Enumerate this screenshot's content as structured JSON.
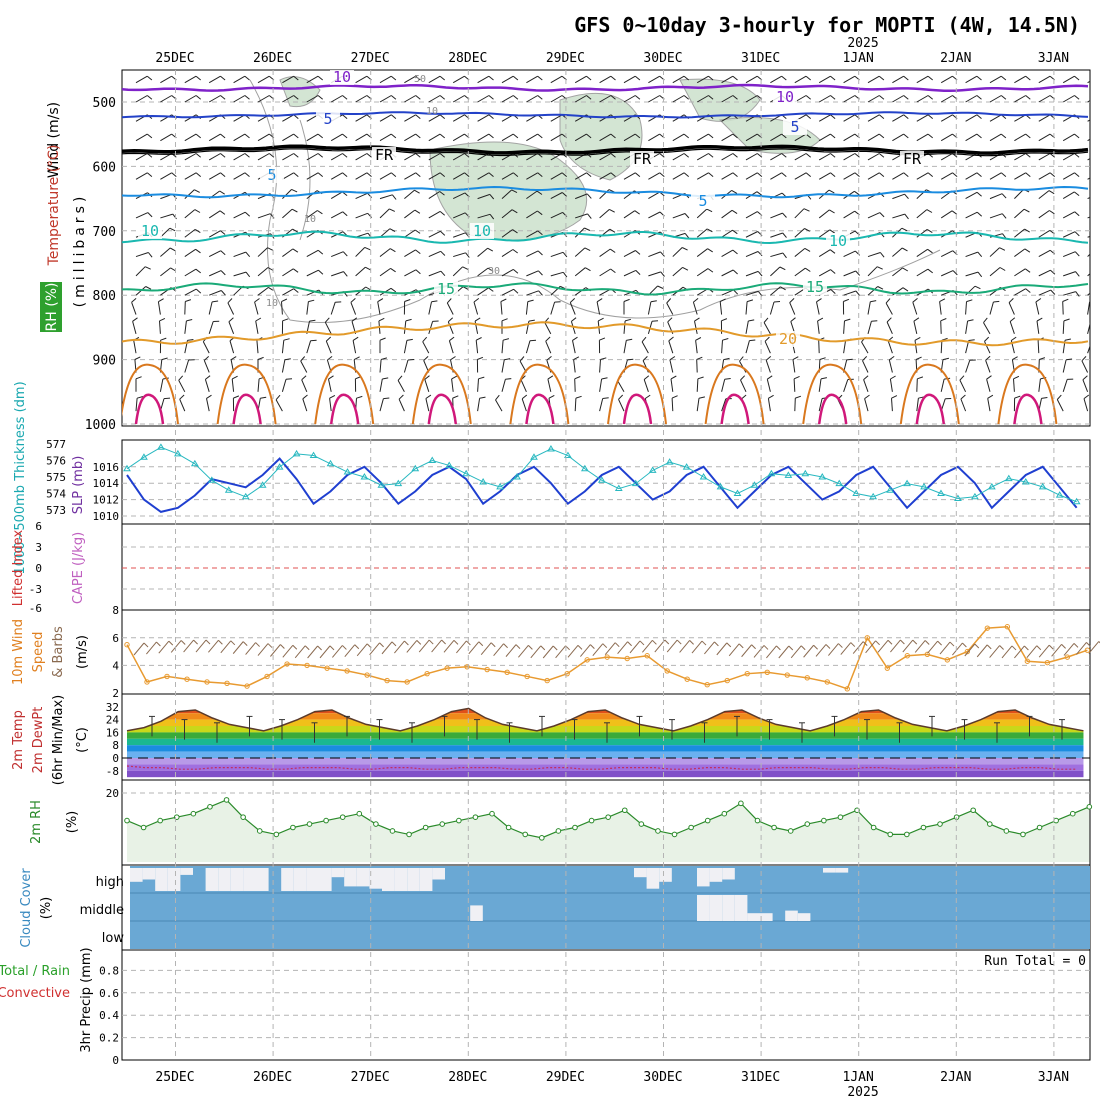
{
  "title": "GFS 0~10day 3-hourly for MOPTI (4W, 14.5N)",
  "year_label": "2025",
  "run_total": "Run Total = 0",
  "date_labels": [
    "25DEC",
    "26DEC",
    "27DEC",
    "28DEC",
    "29DEC",
    "30DEC",
    "31DEC",
    "1JAN",
    "2JAN",
    "3JAN"
  ],
  "colors": {
    "grid": "#b4b4b4",
    "isotherm_purple": "#7f22c9",
    "isotherm_blue": "#2342c8",
    "isotherm_sky": "#1a8ce0",
    "isotherm_teal": "#1ab8b0",
    "isotherm_green": "#1aaa78",
    "isotherm_orange": "#e29a2a",
    "isotherm_darkorange": "#d9781e",
    "isotherm_magenta": "#d0187a",
    "freezing": "#000000",
    "rh_fill": "#cfe3cf",
    "slp": "#1f3fd0",
    "thickness": "#28b8c0",
    "wind_speed": "#e89a30",
    "barb": "#8a6a50",
    "rh2m": "#2a8a2a",
    "rh2m_fill": "#e8f2e6",
    "cloud_bg": "#6aa8d4",
    "cloud_cover": "#f0f0f4"
  },
  "panels": {
    "upper": {
      "ylabel_wind": "Wind (m/s)",
      "ylabel_temp": "Temperature (°C)",
      "ylabel_rh": "RH (%)",
      "ylabel_units": "(millibars)",
      "levels": [
        500,
        600,
        700,
        800,
        900,
        1000
      ],
      "isotherm_labels": [
        "10",
        "5",
        "FR",
        "5",
        "10",
        "15",
        "20"
      ],
      "rh_labels": [
        "50",
        "10",
        "30",
        "10",
        "10"
      ]
    },
    "pressure": {
      "ylabel_thick": "1000~500mb Thickness (dm)",
      "ylabel_slp": "SLP (mb)",
      "thick_ticks": [
        577,
        576,
        575,
        574,
        573
      ],
      "slp_ticks": [
        1016,
        1014,
        1012,
        1010
      ]
    },
    "stability": {
      "ylabel_li": "Lifted Index",
      "ylabel_cape": "CAPE (J/kg)",
      "ticks": [
        "6",
        "3",
        "0",
        "-3",
        "-6"
      ]
    },
    "wind10": {
      "ylabel_a": "10m Wind",
      "ylabel_b": "Speed",
      "ylabel_c": "& Barbs",
      "ylabel_units": "(m/s)",
      "ticks": [
        8,
        6,
        4,
        2
      ]
    },
    "temp2m": {
      "ylabel_a": "2m Temp",
      "ylabel_b": "2m DewPt",
      "ylabel_c": "(6hr Min/Max)",
      "ylabel_units": "(°C)",
      "ticks": [
        32,
        24,
        16,
        8,
        0,
        -8
      ]
    },
    "rh2m": {
      "ylabel": "2m RH",
      "ylabel_units": "(%)",
      "ticks": [
        20
      ]
    },
    "cloud": {
      "ylabel": "Cloud Cover",
      "ylabel_units": "(%)",
      "rows": [
        "high",
        "middle",
        "low"
      ]
    },
    "precip": {
      "ylabel_a": "Total / Rain",
      "ylabel_b": "Convective",
      "ylabel_units": "3hr Precip (mm)",
      "ticks": [
        "0.8",
        "0.6",
        "0.4",
        "0.2",
        "0"
      ]
    }
  },
  "chart_data": {
    "type": "line",
    "x_unit": "hours since 25DEC 00Z (3-hourly)",
    "time_step_hours": 3,
    "slp": [
      1015,
      1012,
      1010.5,
      1011,
      1012.5,
      1014.5,
      1014,
      1013.5,
      1015,
      1017,
      1014.5,
      1011.5,
      1013,
      1015,
      1016,
      1014,
      1011.5,
      1013,
      1015,
      1016,
      1014.5,
      1011.5,
      1013,
      1015,
      1016,
      1014,
      1011.5,
      1013,
      1015,
      1016,
      1014,
      1012,
      1013,
      1015,
      1016,
      1013.5,
      1011,
      1013,
      1015,
      1016,
      1014,
      1012,
      1013,
      1015,
      1016,
      1013.5,
      1011,
      1013,
      1015,
      1016,
      1014,
      1011,
      1013,
      1015,
      1016,
      1013.5,
      1011,
      1013,
      1015,
      1016,
      1013.5,
      1011,
      1012.5,
      1014.5,
      1015.5,
      1013,
      1010.5,
      1012.5,
      1014.5,
      1015.5,
      1013,
      1010.5,
      1012.5,
      1013,
      1012.5,
      1012,
      1014,
      1015.5,
      1013,
      1011,
      1012,
      1014.5,
      1014.5,
      1015
    ],
    "thickness": [
      575.5,
      576.2,
      576.8,
      576.4,
      575.8,
      574.8,
      574.2,
      573.8,
      574.5,
      575.6,
      576.4,
      576.3,
      575.8,
      575.3,
      575.0,
      574.5,
      574.6,
      575.5,
      576.0,
      575.7,
      575.2,
      574.7,
      574.4,
      575.0,
      576.2,
      576.7,
      576.3,
      575.5,
      574.8,
      574.3,
      574.6,
      575.4,
      575.9,
      575.6,
      575.0,
      574.4,
      574.0,
      574.5,
      575.2,
      575.1,
      575.2,
      575.0,
      574.6,
      574.0,
      573.8,
      574.2,
      574.6,
      574.4,
      574.0,
      573.7,
      573.8,
      574.4,
      574.9,
      574.7,
      574.4,
      573.9,
      573.5,
      573.6,
      573.8,
      574.2,
      574.7,
      574.5,
      574.0,
      573.4,
      573.2,
      573.6,
      574.1,
      574.4,
      574.1,
      573.6,
      573.2,
      573.0,
      572.9,
      573.2,
      573.7,
      574.0,
      573.9,
      573.5,
      573.2,
      573.0,
      573.2,
      573.5,
      573.0,
      572.6
    ],
    "wind10_speed": [
      5.5,
      2.8,
      3.2,
      3.0,
      2.8,
      2.7,
      2.5,
      3.2,
      4.1,
      4.0,
      3.8,
      3.6,
      3.3,
      2.9,
      2.8,
      3.4,
      3.8,
      3.9,
      3.7,
      3.5,
      3.2,
      2.9,
      3.4,
      4.4,
      4.6,
      4.5,
      4.7,
      3.6,
      3.0,
      2.6,
      2.9,
      3.4,
      3.5,
      3.3,
      3.1,
      2.8,
      2.3,
      6.0,
      3.8,
      4.7,
      4.8,
      4.4,
      5.0,
      6.7,
      6.8,
      4.3,
      4.2,
      4.6,
      5.1,
      4.6,
      7.6,
      7.3,
      4.0,
      4.3,
      4.5,
      4.7,
      4.1,
      3.6,
      4.4,
      4.3,
      4.2,
      4.0,
      4.4,
      7.5,
      7.2,
      6.8,
      5.7,
      4.3,
      4.8,
      5.0,
      5.3
    ],
    "temp2m": [
      17,
      19,
      23,
      29,
      30,
      25,
      21,
      19,
      17,
      20,
      24,
      29,
      30,
      25,
      21,
      19,
      17,
      20,
      24,
      29,
      31,
      25,
      21,
      19,
      17,
      20,
      24,
      29,
      30,
      25,
      21,
      19,
      17,
      20,
      24,
      29,
      30,
      25,
      21,
      19,
      17,
      20,
      24,
      29,
      30,
      25,
      21,
      19,
      17,
      20,
      24,
      29,
      30,
      25,
      21,
      19,
      17,
      20,
      24,
      29,
      30,
      25,
      21,
      19,
      17,
      20,
      24,
      28,
      29,
      24,
      20,
      18,
      16
    ],
    "dewpt2m": [
      -5,
      -6,
      -6,
      -7,
      -7,
      -6,
      -6,
      -6,
      -7,
      -7,
      -6,
      -6,
      -6,
      -7,
      -7,
      -6,
      -6,
      -7,
      -7,
      -6,
      -6,
      -6,
      -7,
      -7,
      -6,
      -6,
      -7,
      -7,
      -6,
      -6,
      -6,
      -7,
      -7,
      -6,
      -6,
      -7,
      -7,
      -6,
      -6,
      -6,
      -7,
      -7,
      -6,
      -6,
      -7,
      -7,
      -6,
      -6,
      -6,
      -7,
      -7,
      -6,
      -6,
      -7,
      -7,
      -6,
      -6,
      -6,
      -7,
      -7,
      -6,
      -6,
      -7,
      -7,
      -6,
      -6,
      -7,
      -8
    ],
    "rh2m": [
      12,
      10,
      12,
      13,
      14,
      16,
      18,
      13,
      9,
      8,
      10,
      11,
      12,
      13,
      14,
      11,
      9,
      8,
      10,
      11,
      12,
      13,
      14,
      10,
      8,
      7,
      9,
      10,
      12,
      13,
      15,
      11,
      9,
      8,
      10,
      12,
      14,
      17,
      12,
      10,
      9,
      11,
      12,
      13,
      15,
      10,
      8,
      8,
      10,
      11,
      13,
      15,
      11,
      9,
      8,
      10,
      12,
      14,
      16,
      11,
      9,
      8,
      10,
      12,
      14,
      16,
      19,
      12,
      10,
      11,
      14,
      16,
      17,
      16
    ],
    "precip": [],
    "cloud_high": [
      0.6,
      0.5,
      1,
      1,
      0.3,
      0,
      1,
      1,
      1,
      1,
      1,
      0,
      1,
      1,
      1,
      1,
      0.4,
      0.8,
      0.8,
      0.9,
      1,
      1,
      1,
      1,
      0.5,
      0,
      0,
      0,
      0,
      0,
      0,
      0,
      0,
      0,
      0,
      0,
      0,
      0,
      0,
      0,
      0.4,
      0.9,
      0.6,
      0,
      0,
      0.8,
      0.6,
      0.5,
      0,
      0,
      0,
      0,
      0,
      0,
      0,
      0.2,
      0.2,
      0,
      0,
      0,
      0,
      0,
      0,
      0,
      0,
      0,
      0,
      0,
      0,
      0,
      0,
      0,
      0
    ],
    "cloud_middle": [
      0,
      0,
      0,
      0,
      0,
      0,
      0,
      0,
      0,
      0,
      0,
      0,
      0,
      0,
      0,
      0,
      0,
      0,
      0,
      0,
      0,
      0,
      0,
      0,
      0,
      0,
      0,
      0.6,
      0,
      0,
      0,
      0,
      0,
      0,
      0,
      0,
      0,
      0,
      0,
      0,
      0,
      0,
      0,
      0,
      0,
      1,
      1,
      1,
      1,
      0.3,
      0.3,
      0,
      0.4,
      0.3,
      0,
      0,
      0,
      0,
      0,
      0,
      0,
      0,
      0,
      0,
      0,
      0,
      0,
      0,
      0,
      0,
      0,
      0,
      0
    ]
  }
}
